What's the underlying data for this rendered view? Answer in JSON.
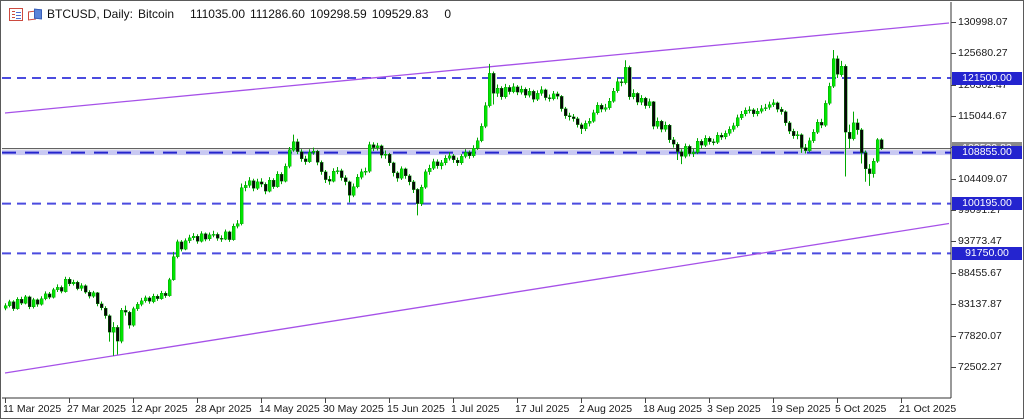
{
  "window": {
    "title_symbol": "BTCUSD, Daily:",
    "title_name": "Bitcoin",
    "quote": {
      "open": "111035.00",
      "high": "111286.60",
      "low": "109298.59",
      "close": "109529.83"
    },
    "volume": "0",
    "icons": [
      {
        "name": "market-watch-icon"
      },
      {
        "name": "one-click-trading-icon"
      }
    ]
  },
  "chart_data": {
    "type": "candlestick",
    "symbol": "BTCUSD",
    "timeframe": "Daily",
    "title": "BTCUSD, Daily: Bitcoin",
    "start_date": "11 Mar 2025",
    "x_tick_interval_days": 16,
    "x_ticks": [
      "11 Mar 2025",
      "27 Mar 2025",
      "12 Apr 2025",
      "28 Apr 2025",
      "14 May 2025",
      "30 May 2025",
      "15 Jun 2025",
      "1 Jul 2025",
      "17 Jul 2025",
      "2 Aug 2025",
      "18 Aug 2025",
      "3 Sep 2025",
      "19 Sep 2025",
      "5 Oct 2025",
      "21 Oct 2025"
    ],
    "y_ticks": [
      130998.07,
      125680.27,
      120362.47,
      115044.67,
      109726.87,
      104409.07,
      99091.27,
      93773.47,
      88455.67,
      83137.87,
      77820.07,
      72502.27
    ],
    "ylim": [
      71000,
      132200
    ],
    "grid": false,
    "legend": "none",
    "levels": [
      {
        "value": 121500.0,
        "label": "121500.00",
        "style": "dashed"
      },
      {
        "value": 108855.0,
        "label": "108855.00",
        "style": "banded-dashed"
      },
      {
        "value": 100195.0,
        "label": "100195.00",
        "style": "dashed"
      },
      {
        "value": 91750.0,
        "label": "91750.00",
        "style": "dashed"
      }
    ],
    "bid_line": {
      "value": 109529.83,
      "label": "109529.83"
    },
    "trendlines": [
      {
        "name": "upper-channel-line",
        "from_day": 0,
        "from_price": 115560,
        "to_day": 236,
        "to_price": 130830
      },
      {
        "name": "lower-channel-line",
        "from_day": 0,
        "from_price": 71470,
        "to_day": 236,
        "to_price": 96820
      }
    ],
    "colors": {
      "up": "#00e400",
      "down": "#070707",
      "wick": "#00a800",
      "body_stroke": "#009300",
      "level_dashed": "#4b4bdf",
      "level_solid": "#2525cd",
      "level_band": "#c9c9f2",
      "bid": "#4d4d4d",
      "trend": "#a651e8",
      "badge_blue": "#2424cf",
      "badge_grey": "#8a8a8a",
      "axis": "#444444"
    },
    "ohlc": [
      [
        82500,
        83300,
        82100,
        82900
      ],
      [
        82900,
        83900,
        82600,
        83600
      ],
      [
        83600,
        83800,
        82000,
        82400
      ],
      [
        82400,
        84300,
        82200,
        84000
      ],
      [
        84000,
        84400,
        83000,
        83300
      ],
      [
        83300,
        84700,
        83100,
        84400
      ],
      [
        84400,
        84600,
        82300,
        82700
      ],
      [
        82700,
        84200,
        82400,
        83900
      ],
      [
        83900,
        84100,
        82700,
        83100
      ],
      [
        83100,
        84500,
        82900,
        84100
      ],
      [
        84100,
        85300,
        83800,
        84900
      ],
      [
        84900,
        85200,
        84000,
        84300
      ],
      [
        84300,
        85900,
        84100,
        85600
      ],
      [
        85600,
        86500,
        85200,
        86000
      ],
      [
        86000,
        86300,
        85000,
        85300
      ],
      [
        85300,
        87800,
        85100,
        87400
      ],
      [
        87400,
        87700,
        86200,
        86600
      ],
      [
        86600,
        87300,
        86300,
        86900
      ],
      [
        86900,
        87100,
        85500,
        85800
      ],
      [
        85800,
        86700,
        85400,
        86300
      ],
      [
        86300,
        86500,
        84900,
        85200
      ],
      [
        85200,
        85500,
        84100,
        84500
      ],
      [
        84500,
        85400,
        84200,
        85100
      ],
      [
        85100,
        85200,
        82800,
        83200
      ],
      [
        83200,
        83600,
        82100,
        82500
      ],
      [
        82500,
        82800,
        80700,
        81200
      ],
      [
        81200,
        81400,
        76800,
        78400
      ],
      [
        78400,
        80100,
        74400,
        79200
      ],
      [
        79200,
        79600,
        74600,
        76900
      ],
      [
        76900,
        82500,
        76500,
        82100
      ],
      [
        82100,
        82900,
        81200,
        81800
      ],
      [
        81800,
        82000,
        79000,
        79600
      ],
      [
        79600,
        82700,
        79300,
        82400
      ],
      [
        82400,
        83500,
        82000,
        83100
      ],
      [
        83100,
        84200,
        82800,
        83700
      ],
      [
        83700,
        84600,
        83400,
        84200
      ],
      [
        84200,
        84500,
        83200,
        83600
      ],
      [
        83600,
        84900,
        83300,
        84500
      ],
      [
        84500,
        84800,
        83700,
        84100
      ],
      [
        84100,
        85400,
        83900,
        85000
      ],
      [
        85000,
        85300,
        84200,
        84600
      ],
      [
        84600,
        87600,
        84400,
        87300
      ],
      [
        87300,
        92000,
        87100,
        91200
      ],
      [
        91200,
        94100,
        90900,
        93700
      ],
      [
        93700,
        94000,
        92100,
        92500
      ],
      [
        92500,
        94300,
        92300,
        93900
      ],
      [
        93900,
        94900,
        93500,
        94400
      ],
      [
        94400,
        95200,
        94000,
        94700
      ],
      [
        94700,
        95000,
        93400,
        93800
      ],
      [
        93800,
        95500,
        93600,
        95100
      ],
      [
        95100,
        95300,
        93800,
        94200
      ],
      [
        94200,
        95300,
        93900,
        94900
      ],
      [
        94900,
        95600,
        94500,
        95000
      ],
      [
        95000,
        95300,
        93900,
        94300
      ],
      [
        94300,
        94800,
        93700,
        94200
      ],
      [
        94200,
        95800,
        94000,
        95400
      ],
      [
        95400,
        95600,
        93700,
        94100
      ],
      [
        94100,
        96800,
        93900,
        96400
      ],
      [
        96400,
        97400,
        96000,
        96800
      ],
      [
        96800,
        103600,
        96500,
        102900
      ],
      [
        102900,
        104000,
        102300,
        103300
      ],
      [
        103300,
        104700,
        102900,
        104100
      ],
      [
        104100,
        104400,
        102300,
        102800
      ],
      [
        102800,
        104400,
        102500,
        103900
      ],
      [
        103900,
        104500,
        103000,
        103500
      ],
      [
        103500,
        103800,
        101800,
        102300
      ],
      [
        102300,
        104700,
        102100,
        104200
      ],
      [
        104200,
        104500,
        102700,
        103100
      ],
      [
        103100,
        105700,
        102900,
        105200
      ],
      [
        105200,
        105500,
        103500,
        104000
      ],
      [
        104000,
        107000,
        103800,
        106500
      ],
      [
        106500,
        109800,
        106200,
        109300
      ],
      [
        109300,
        111900,
        109000,
        110700
      ],
      [
        110700,
        111200,
        108600,
        109000
      ],
      [
        109000,
        109400,
        107300,
        107800
      ],
      [
        107800,
        108300,
        106800,
        107300
      ],
      [
        107300,
        109400,
        107100,
        108900
      ],
      [
        108900,
        109700,
        108500,
        109100
      ],
      [
        109100,
        109300,
        106700,
        107200
      ],
      [
        107200,
        107500,
        105100,
        105600
      ],
      [
        105600,
        105900,
        103700,
        104300
      ],
      [
        104300,
        104900,
        103400,
        104000
      ],
      [
        104000,
        106200,
        103800,
        105700
      ],
      [
        105700,
        106400,
        105200,
        105800
      ],
      [
        105800,
        106100,
        104100,
        104600
      ],
      [
        104600,
        105000,
        103300,
        103900
      ],
      [
        103900,
        104100,
        100400,
        101600
      ],
      [
        101600,
        103600,
        101300,
        103100
      ],
      [
        103100,
        105200,
        102800,
        104700
      ],
      [
        104700,
        106100,
        104300,
        105600
      ],
      [
        105600,
        106300,
        105000,
        105700
      ],
      [
        105700,
        110700,
        105400,
        110200
      ],
      [
        110200,
        110600,
        109100,
        109700
      ],
      [
        109700,
        110500,
        109200,
        110000
      ],
      [
        110000,
        110200,
        107900,
        108400
      ],
      [
        108400,
        109200,
        107800,
        108600
      ],
      [
        108600,
        108800,
        106600,
        107100
      ],
      [
        107100,
        107300,
        104800,
        105400
      ],
      [
        105400,
        105700,
        103900,
        104500
      ],
      [
        104500,
        106500,
        104200,
        106100
      ],
      [
        106100,
        106300,
        104400,
        104900
      ],
      [
        104900,
        105200,
        103300,
        103900
      ],
      [
        103900,
        104200,
        102000,
        102600
      ],
      [
        102600,
        102800,
        98200,
        100200
      ],
      [
        100200,
        103400,
        99800,
        103000
      ],
      [
        103000,
        106000,
        102700,
        105600
      ],
      [
        105600,
        106800,
        105100,
        106200
      ],
      [
        106200,
        107800,
        105900,
        107300
      ],
      [
        107300,
        107700,
        106100,
        106600
      ],
      [
        106600,
        107600,
        106000,
        107100
      ],
      [
        107100,
        108400,
        106700,
        107900
      ],
      [
        107900,
        108900,
        107500,
        108300
      ],
      [
        108300,
        108600,
        107100,
        107600
      ],
      [
        107600,
        108000,
        106600,
        107100
      ],
      [
        107100,
        108600,
        106800,
        108200
      ],
      [
        108200,
        109400,
        107900,
        108900
      ],
      [
        108900,
        109200,
        107800,
        108300
      ],
      [
        108300,
        110100,
        108000,
        109600
      ],
      [
        109600,
        111400,
        109300,
        110900
      ],
      [
        110900,
        113800,
        110600,
        113300
      ],
      [
        113300,
        117400,
        113000,
        116800
      ],
      [
        116800,
        123900,
        116500,
        122300
      ],
      [
        122300,
        122600,
        117000,
        118900
      ],
      [
        118900,
        120400,
        118300,
        119800
      ],
      [
        119800,
        120100,
        117800,
        118300
      ],
      [
        118300,
        120500,
        118000,
        119900
      ],
      [
        119900,
        120300,
        118700,
        119200
      ],
      [
        119200,
        120600,
        118900,
        120000
      ],
      [
        120000,
        120300,
        118600,
        119100
      ],
      [
        119100,
        120200,
        118700,
        119600
      ],
      [
        119600,
        119900,
        118100,
        118600
      ],
      [
        118600,
        119800,
        118200,
        119300
      ],
      [
        119300,
        119500,
        117400,
        117900
      ],
      [
        117900,
        119400,
        117600,
        118900
      ],
      [
        118900,
        120100,
        118500,
        119500
      ],
      [
        119500,
        119700,
        117700,
        118200
      ],
      [
        118200,
        118700,
        117500,
        118000
      ],
      [
        118000,
        119300,
        117700,
        118800
      ],
      [
        118800,
        119200,
        117900,
        118400
      ],
      [
        118400,
        118600,
        115800,
        116300
      ],
      [
        116300,
        116600,
        114600,
        115100
      ],
      [
        115100,
        115600,
        114300,
        114900
      ],
      [
        114900,
        115400,
        114100,
        114600
      ],
      [
        114600,
        114900,
        113100,
        113600
      ],
      [
        113600,
        113900,
        112000,
        112900
      ],
      [
        112900,
        114300,
        112500,
        113800
      ],
      [
        113800,
        114700,
        113300,
        114200
      ],
      [
        114200,
        116100,
        113900,
        115600
      ],
      [
        115600,
        117400,
        115300,
        116900
      ],
      [
        116900,
        117200,
        115700,
        116200
      ],
      [
        116200,
        117100,
        115800,
        116500
      ],
      [
        116500,
        118100,
        116100,
        117600
      ],
      [
        117600,
        119800,
        117300,
        119300
      ],
      [
        119300,
        121500,
        119000,
        120900
      ],
      [
        120900,
        121400,
        120100,
        120700
      ],
      [
        120700,
        124500,
        120400,
        123300
      ],
      [
        123300,
        123600,
        117800,
        118300
      ],
      [
        118300,
        119600,
        117900,
        118900
      ],
      [
        118900,
        119100,
        116900,
        117400
      ],
      [
        117400,
        118600,
        116900,
        118100
      ],
      [
        118100,
        118300,
        116300,
        116800
      ],
      [
        116800,
        118000,
        116400,
        117500
      ],
      [
        117500,
        117600,
        112800,
        113300
      ],
      [
        113300,
        114800,
        112900,
        114200
      ],
      [
        114200,
        114400,
        112300,
        112800
      ],
      [
        112800,
        114100,
        112400,
        113500
      ],
      [
        113500,
        113700,
        110500,
        111000
      ],
      [
        111000,
        111500,
        109700,
        110300
      ],
      [
        110300,
        110600,
        107600,
        109000
      ],
      [
        109000,
        109400,
        106900,
        108200
      ],
      [
        108200,
        110400,
        107900,
        109900
      ],
      [
        109900,
        110200,
        108200,
        108700
      ],
      [
        108700,
        109500,
        108100,
        108900
      ],
      [
        108900,
        111300,
        108600,
        110800
      ],
      [
        110800,
        111100,
        109600,
        110100
      ],
      [
        110100,
        111800,
        109800,
        111300
      ],
      [
        111300,
        111600,
        110200,
        110700
      ],
      [
        110700,
        111200,
        110100,
        110600
      ],
      [
        110600,
        112300,
        110300,
        111800
      ],
      [
        111800,
        112200,
        111000,
        111500
      ],
      [
        111500,
        112600,
        111100,
        112100
      ],
      [
        112100,
        113300,
        111700,
        112800
      ],
      [
        112800,
        113900,
        112400,
        113400
      ],
      [
        113400,
        115300,
        113100,
        114800
      ],
      [
        114800,
        115900,
        114400,
        115400
      ],
      [
        115400,
        116500,
        115000,
        116000
      ],
      [
        116000,
        116700,
        115500,
        116100
      ],
      [
        116100,
        116400,
        114900,
        115400
      ],
      [
        115400,
        116400,
        115000,
        115900
      ],
      [
        115900,
        116900,
        115500,
        116300
      ],
      [
        116300,
        117100,
        115900,
        116500
      ],
      [
        116500,
        117500,
        116100,
        117000
      ],
      [
        117000,
        117900,
        116600,
        117300
      ],
      [
        117300,
        117500,
        115700,
        116200
      ],
      [
        116200,
        116600,
        115300,
        115800
      ],
      [
        115800,
        116000,
        113400,
        113900
      ],
      [
        113900,
        114200,
        112000,
        112500
      ],
      [
        112500,
        112900,
        111200,
        111700
      ],
      [
        111700,
        112500,
        111100,
        111900
      ],
      [
        111900,
        112100,
        108800,
        109700
      ],
      [
        109700,
        110300,
        108700,
        109200
      ],
      [
        109200,
        111400,
        108900,
        110900
      ],
      [
        110900,
        112800,
        110500,
        112300
      ],
      [
        112300,
        114500,
        112000,
        114000
      ],
      [
        114000,
        114600,
        113000,
        113500
      ],
      [
        113500,
        117700,
        113200,
        117200
      ],
      [
        117200,
        120700,
        116900,
        120100
      ],
      [
        120100,
        126250,
        119800,
        124800
      ],
      [
        124800,
        125300,
        121500,
        122100
      ],
      [
        122100,
        124400,
        121700,
        123500
      ],
      [
        123500,
        123800,
        104800,
        112300
      ],
      [
        112300,
        113600,
        109600,
        111200
      ],
      [
        111200,
        115800,
        110900,
        113900
      ],
      [
        113900,
        114600,
        111900,
        112700
      ],
      [
        112700,
        113000,
        107000,
        108800
      ],
      [
        108800,
        109200,
        103900,
        106100
      ],
      [
        106100,
        106900,
        103200,
        105300
      ],
      [
        105300,
        107900,
        104600,
        107400
      ],
      [
        107400,
        111300,
        107100,
        111035
      ],
      [
        111035,
        111286.6,
        109298.59,
        109529.83
      ]
    ]
  }
}
